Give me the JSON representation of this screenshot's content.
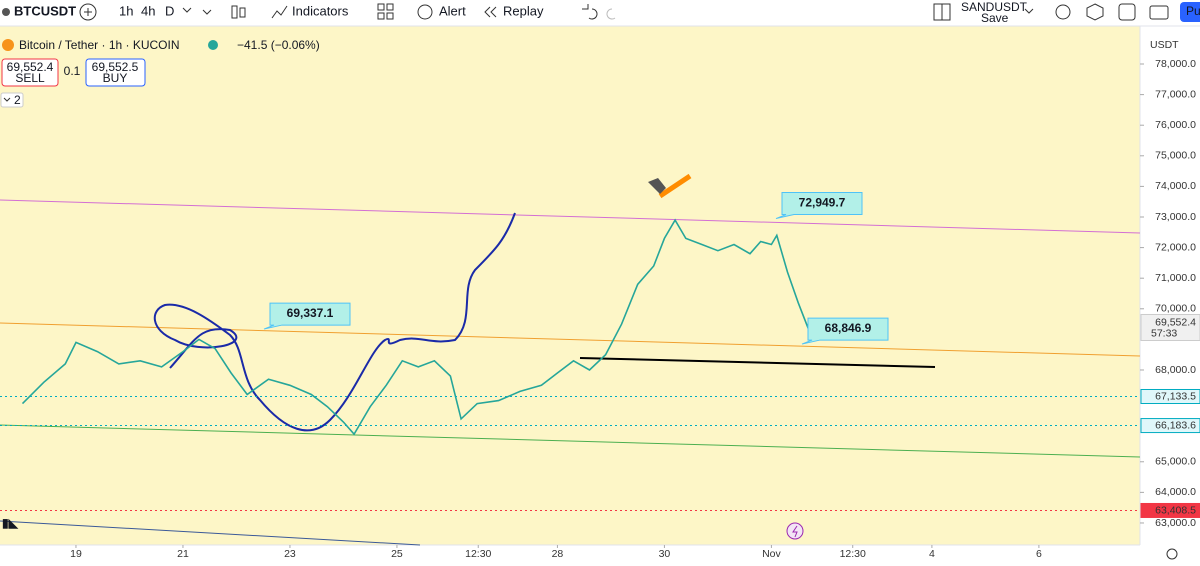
{
  "toolbar": {
    "symbol": "BTCUSDT",
    "intervals": [
      "1h",
      "4h",
      "D"
    ],
    "indicators": "Indicators",
    "alert": "Alert",
    "replay": "Replay",
    "layout_name": "SANDUSDT",
    "save": "Save",
    "profile": "Pu"
  },
  "legend": {
    "title": "Bitcoin / Tether · 1h · KUCOIN",
    "change": "−41.5 (−0.06%)",
    "sell_price": "69,552.4",
    "sell": "SELL",
    "spread": "0.1",
    "buy_price": "69,552.5",
    "buy": "BUY",
    "indicators_count": "2"
  },
  "chart_data": {
    "type": "line",
    "color": "#26a69a",
    "x": [
      18.0,
      18.4,
      18.8,
      19.0,
      19.4,
      19.8,
      20.2,
      20.6,
      21.0,
      21.3,
      21.6,
      21.9,
      22.2,
      22.6,
      23.0,
      23.4,
      23.7,
      24.0,
      24.2,
      24.5,
      24.8,
      25.1,
      25.4,
      25.7,
      26.0,
      26.2,
      26.5,
      26.9,
      27.3,
      27.7,
      28.0,
      28.3,
      28.6,
      28.9,
      29.2,
      29.5,
      29.8,
      30.0,
      30.2,
      30.4,
      30.7,
      31.0,
      31.3,
      31.6,
      31.8,
      32.0,
      32.1,
      32.3,
      32.5,
      32.7,
      32.85,
      33.0
    ],
    "values": [
      66900,
      67600,
      68200,
      68900,
      68600,
      68200,
      68300,
      68100,
      68600,
      69000,
      68700,
      67900,
      67200,
      67700,
      67500,
      67200,
      66800,
      66300,
      65900,
      66800,
      67500,
      68300,
      68100,
      68300,
      67800,
      66400,
      66900,
      67000,
      67300,
      67500,
      67900,
      68300,
      68000,
      68500,
      69500,
      70800,
      71400,
      72300,
      72900,
      72300,
      72100,
      71900,
      72100,
      71800,
      72200,
      72100,
      72400,
      71200,
      70200,
      69300,
      69100,
      69552
    ],
    "xlim": [
      17.58,
      38.89
    ],
    "ylim": [
      62280,
      78850
    ],
    "xticks": [
      19,
      21,
      23,
      25,
      {
        "value": 26.52,
        "label": "12:30"
      },
      28,
      30,
      {
        "value": 32,
        "label": "Nov"
      },
      {
        "value": 33.52,
        "label": "12:30"
      },
      {
        "value": 35,
        "label": "4"
      },
      {
        "value": 37,
        "label": "6"
      }
    ],
    "yticks": [
      {
        "value": 63000,
        "label": "63,000.0"
      },
      {
        "value": 64000,
        "label": "64,000.0"
      },
      {
        "value": 65000,
        "label": "65,000.0"
      },
      {
        "value": 68000,
        "label": "68,000.0"
      },
      {
        "value": 70000,
        "label": "70,000.0"
      },
      {
        "value": 71000,
        "label": "71,000.0"
      },
      {
        "value": 72000,
        "label": "72,000.0"
      },
      {
        "value": 73000,
        "label": "73,000.0"
      },
      {
        "value": 74000,
        "label": "74,000.0"
      },
      {
        "value": 75000,
        "label": "75,000.0"
      },
      {
        "value": 76000,
        "label": "76,000.0"
      },
      {
        "value": 77000,
        "label": "77,000.0"
      },
      {
        "value": 78000,
        "label": "78,000.0"
      }
    ],
    "currency": "USDT",
    "last_price": {
      "value": 69552.4,
      "label": "69,552.4"
    },
    "countdown": "57:33",
    "price_lines": [
      {
        "value": 67133.5,
        "label": "67,133.5",
        "color": "#00acc1"
      },
      {
        "value": 66183.6,
        "label": "66,183.6",
        "color": "#00acc1"
      },
      {
        "value": 63408.5,
        "label": "63,408.5",
        "color": "#f23645"
      }
    ],
    "annotations": [
      {
        "value": 69337.1,
        "label": "69,337.1"
      },
      {
        "value": 72949.7,
        "label": "72,949.7"
      },
      {
        "value": 68846.9,
        "label": "68,846.9"
      }
    ]
  }
}
